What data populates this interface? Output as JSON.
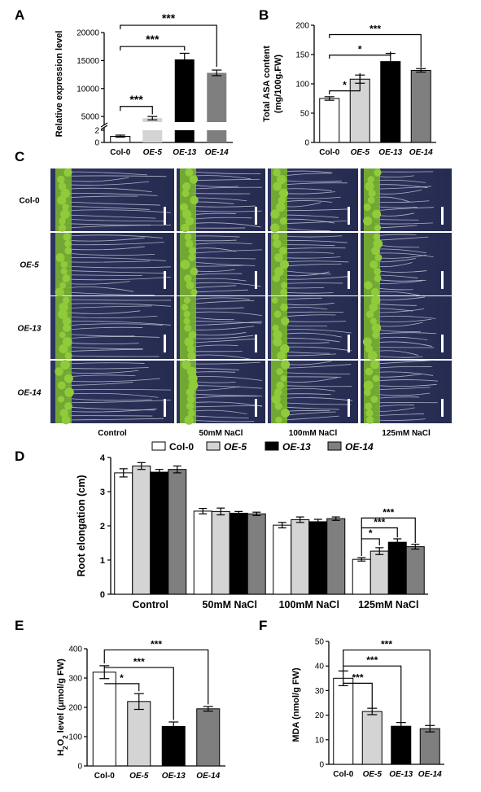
{
  "panel_letters": [
    "A",
    "B",
    "C",
    "D",
    "E",
    "F"
  ],
  "genotypes": [
    "Col-0",
    "OE-5",
    "OE-13",
    "OE-14"
  ],
  "colors": {
    "Col-0": "#ffffff",
    "OE-5": "#d4d4d4",
    "OE-13": "#000000",
    "OE-14": "#7f7f7f",
    "photo_bg": "#2b3058",
    "seedling": "#79b42e"
  },
  "photo_panel": {
    "rows": [
      "Col-0",
      "OE-5",
      "OE-13",
      "OE-14"
    ],
    "columns": [
      "Control",
      "50mM NaCl",
      "100mM NaCl",
      "125mM NaCl"
    ]
  },
  "chart_data": [
    {
      "panel": "A",
      "type": "bar",
      "ylabel": "Relative expression level",
      "categories": [
        "Col-0",
        "OE-5",
        "OE-13",
        "OE-14"
      ],
      "values": [
        1,
        4700,
        15200,
        12800
      ],
      "errors": [
        0.1,
        300,
        1100,
        500
      ],
      "y_broken": true,
      "lower_ticks": [
        "0",
        "2"
      ],
      "upper_ticks": [
        "5000",
        "10000",
        "15000",
        "20000"
      ],
      "ylim_upper": [
        4000,
        20000
      ],
      "significance": [
        {
          "from": "Col-0",
          "to": "OE-5",
          "label": "***"
        },
        {
          "from": "Col-0",
          "to": "OE-13",
          "label": "***"
        },
        {
          "from": "Col-0",
          "to": "OE-14",
          "label": "***"
        }
      ]
    },
    {
      "panel": "B",
      "type": "bar",
      "ylabel": "Total ASA content",
      "ylabel2": "(mg/100g.FW)",
      "categories": [
        "Col-0",
        "OE-5",
        "OE-13",
        "OE-14"
      ],
      "values": [
        75,
        108,
        138,
        123
      ],
      "errors": [
        3,
        7,
        14,
        3
      ],
      "ylim": [
        0,
        200
      ],
      "ticks": [
        0,
        50,
        100,
        150,
        200
      ],
      "significance": [
        {
          "from": "Col-0",
          "to": "OE-5",
          "label": "*"
        },
        {
          "from": "Col-0",
          "to": "OE-13",
          "label": "*"
        },
        {
          "from": "Col-0",
          "to": "OE-14",
          "label": "***"
        }
      ]
    },
    {
      "panel": "D",
      "type": "bar",
      "ylabel": "Root elongation (cm)",
      "categories": [
        "Control",
        "50mM NaCl",
        "100mM NaCl",
        "125mM NaCl"
      ],
      "series": [
        {
          "name": "Col-0",
          "values": [
            3.55,
            2.43,
            2.02,
            1.02
          ],
          "errors": [
            0.12,
            0.08,
            0.08,
            0.05
          ]
        },
        {
          "name": "OE-5",
          "values": [
            3.75,
            2.42,
            2.18,
            1.26
          ],
          "errors": [
            0.1,
            0.1,
            0.08,
            0.1
          ]
        },
        {
          "name": "OE-13",
          "values": [
            3.57,
            2.37,
            2.12,
            1.52
          ],
          "errors": [
            0.08,
            0.05,
            0.07,
            0.1
          ]
        },
        {
          "name": "OE-14",
          "values": [
            3.65,
            2.35,
            2.21,
            1.39
          ],
          "errors": [
            0.1,
            0.05,
            0.05,
            0.07
          ]
        }
      ],
      "legend": "top",
      "ylim": [
        0,
        4
      ],
      "ticks": [
        0,
        1,
        2,
        3,
        4
      ],
      "significance": [
        {
          "group": "125mM NaCl",
          "from": "Col-0",
          "to": "OE-5",
          "label": "*"
        },
        {
          "group": "125mM NaCl",
          "from": "Col-0",
          "to": "OE-13",
          "label": "***"
        },
        {
          "group": "125mM NaCl",
          "from": "Col-0",
          "to": "OE-14",
          "label": "***"
        }
      ]
    },
    {
      "panel": "E",
      "type": "bar",
      "ylabel": "H2O2 level (μmol/g FW)",
      "categories": [
        "Col-0",
        "OE-5",
        "OE-13",
        "OE-14"
      ],
      "values": [
        320,
        220,
        135,
        195
      ],
      "errors": [
        22,
        27,
        15,
        8
      ],
      "ylim": [
        0,
        400
      ],
      "ticks": [
        0,
        100,
        200,
        300,
        400
      ],
      "significance": [
        {
          "from": "Col-0",
          "to": "OE-5",
          "label": "*"
        },
        {
          "from": "Col-0",
          "to": "OE-13",
          "label": "***"
        },
        {
          "from": "Col-0",
          "to": "OE-14",
          "label": "***"
        }
      ]
    },
    {
      "panel": "F",
      "type": "bar",
      "ylabel": "MDA (nmol/g FW)",
      "categories": [
        "Col-0",
        "OE-5",
        "OE-13",
        "OE-14"
      ],
      "values": [
        35,
        21.5,
        15.5,
        14.5
      ],
      "errors": [
        3,
        1.3,
        1.5,
        1.3
      ],
      "ylim": [
        0,
        50
      ],
      "ticks": [
        0,
        10,
        20,
        30,
        40,
        50
      ],
      "significance": [
        {
          "from": "Col-0",
          "to": "OE-5",
          "label": "***"
        },
        {
          "from": "Col-0",
          "to": "OE-13",
          "label": "***"
        },
        {
          "from": "Col-0",
          "to": "OE-14",
          "label": "***"
        }
      ]
    }
  ]
}
